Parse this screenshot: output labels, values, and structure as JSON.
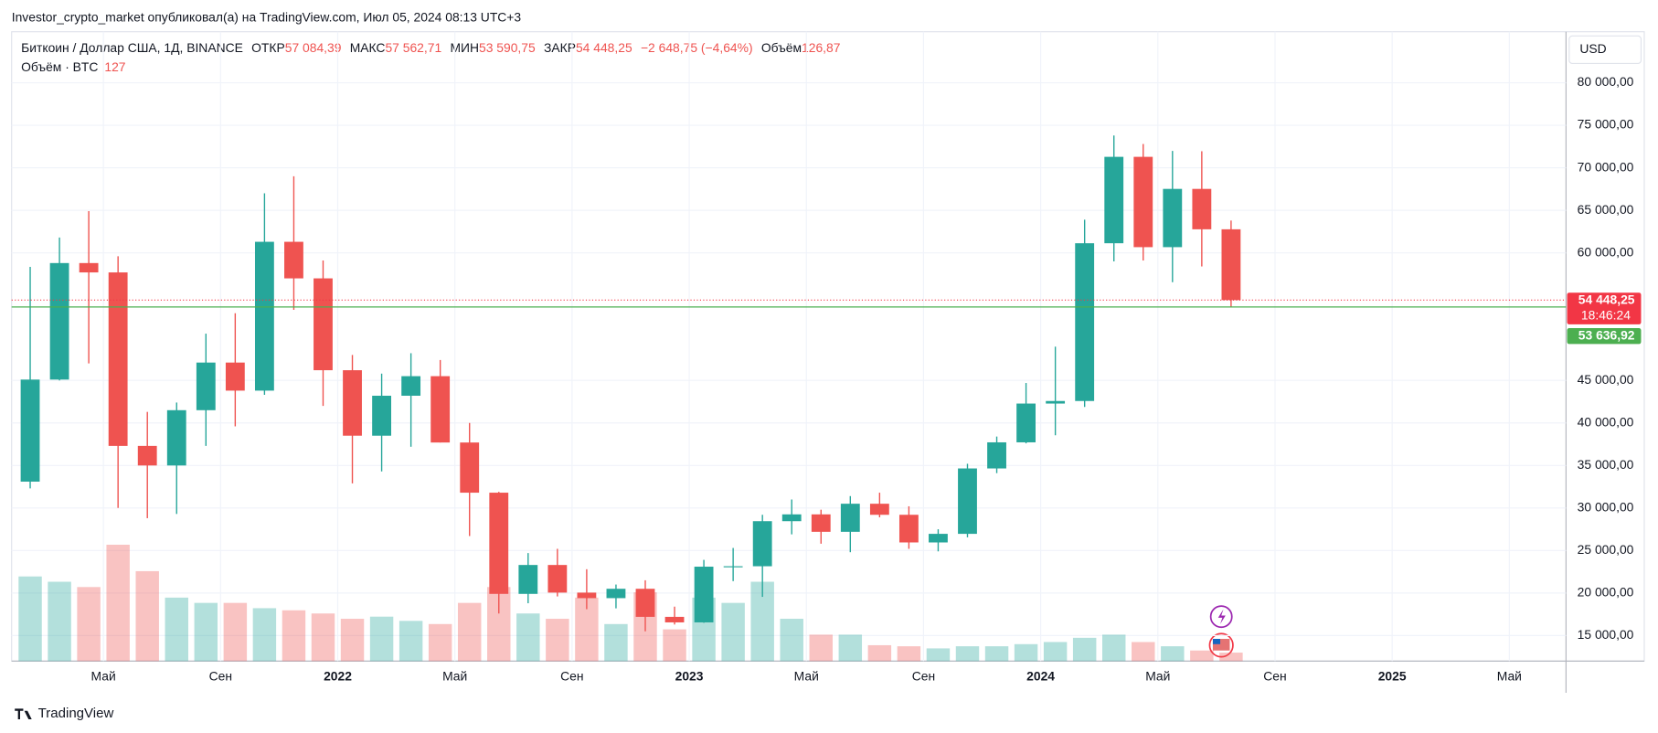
{
  "header": {
    "publisher": "Investor_crypto_market опубликовал(а) на TradingView.com, Июл 05, 2024 08:13 UTC+3",
    "brand": "TradingView"
  },
  "chart_data": {
    "type": "candlestick",
    "title": "Биткоин / Доллар США, 1Д, BINANCE",
    "legend": {
      "open_label": "ОТКР",
      "open": {
        "value": 57084.39,
        "label": "57 084,39"
      },
      "high_label": "МАКС",
      "high": {
        "value": 57562.71,
        "label": "57 562,71"
      },
      "low_label": "МИН",
      "low": {
        "value": 53590.75,
        "label": "53 590,75"
      },
      "close_label": "ЗАКР",
      "close": {
        "value": 54448.25,
        "label": "54 448,25"
      },
      "change": {
        "value": -2648.75,
        "label": "−2 648,75 (−4,64%)"
      },
      "volume_label": "Объём",
      "volume": {
        "value": 126.87,
        "label": "126,87"
      }
    },
    "volume_title": "Объём · BTC",
    "volume_last": 127,
    "currency": "USD",
    "countdown": "18:46:24",
    "up_color": "#26a69a",
    "down_color": "#ef5350",
    "x": [
      "2021-02",
      "2021-03",
      "2021-04",
      "2021-05",
      "2021-06",
      "2021-07",
      "2021-08",
      "2021-09",
      "2021-10",
      "2021-11",
      "2021-12",
      "2022-01",
      "2022-02",
      "2022-03",
      "2022-04",
      "2022-05",
      "2022-06",
      "2022-07",
      "2022-08",
      "2022-09",
      "2022-10",
      "2022-11",
      "2022-12",
      "2023-01",
      "2023-02",
      "2023-03",
      "2023-04",
      "2023-05",
      "2023-06",
      "2023-07",
      "2023-08",
      "2023-09",
      "2023-10",
      "2023-11",
      "2023-12",
      "2024-01",
      "2024-02",
      "2024-03",
      "2024-04",
      "2024-05",
      "2024-06",
      "2024-07"
    ],
    "open": [
      33100,
      45100,
      58800,
      57700,
      37300,
      35000,
      41500,
      47100,
      43800,
      61300,
      57000,
      46200,
      38500,
      43200,
      45500,
      37700,
      31800,
      19900,
      23300,
      20050,
      19400,
      20500,
      17200,
      16550,
      23100,
      23150,
      28450,
      29250,
      27200,
      30500,
      29200,
      25950,
      26960,
      34650,
      37720,
      42280,
      42580,
      61130,
      71290,
      60670,
      67520,
      62770
    ],
    "high": [
      58350,
      61800,
      64900,
      59600,
      41300,
      42400,
      50500,
      52900,
      67000,
      69000,
      59100,
      48000,
      45800,
      48200,
      47400,
      40000,
      31900,
      24700,
      25200,
      22800,
      21000,
      21500,
      18400,
      23900,
      25300,
      29200,
      31000,
      29800,
      31400,
      31800,
      30200,
      27500,
      35200,
      38400,
      44700,
      48970,
      63900,
      73800,
      72800,
      71980,
      71950,
      63800
    ],
    "low": [
      32300,
      45000,
      47000,
      30000,
      28800,
      29300,
      37300,
      39600,
      43300,
      53300,
      42000,
      32900,
      34300,
      37200,
      37700,
      26700,
      17600,
      18800,
      19600,
      18100,
      18200,
      15500,
      16300,
      16500,
      21400,
      19550,
      26900,
      25800,
      24800,
      28900,
      25200,
      24900,
      26550,
      34100,
      37600,
      38550,
      41880,
      59000,
      59100,
      56550,
      58400,
      53590
    ],
    "close": [
      45100,
      58800,
      57700,
      37300,
      35000,
      41500,
      47100,
      43800,
      61300,
      57000,
      46200,
      38500,
      43200,
      45500,
      37700,
      31800,
      19900,
      23300,
      20050,
      19400,
      20500,
      17200,
      16550,
      23100,
      23150,
      28450,
      29250,
      27200,
      30500,
      29200,
      25950,
      26960,
      34650,
      37720,
      42280,
      42580,
      61130,
      71290,
      60670,
      67520,
      62770,
      54448.25
    ],
    "volume": [
      80,
      75,
      70,
      110,
      85,
      60,
      55,
      55,
      50,
      48,
      45,
      40,
      42,
      38,
      35,
      55,
      70,
      45,
      40,
      60,
      35,
      65,
      30,
      60,
      55,
      75,
      40,
      25,
      25,
      15,
      14,
      12,
      14,
      14,
      16,
      18,
      22,
      25,
      18,
      14,
      10,
      8
    ],
    "xticks": [
      {
        "value": "2021-05",
        "label": "Май"
      },
      {
        "value": "2021-09",
        "label": "Сен"
      },
      {
        "value": "2022-01",
        "label": "2022"
      },
      {
        "value": "2022-05",
        "label": "Май"
      },
      {
        "value": "2022-09",
        "label": "Сен"
      },
      {
        "value": "2023-01",
        "label": "2023"
      },
      {
        "value": "2023-05",
        "label": "Май"
      },
      {
        "value": "2023-09",
        "label": "Сен"
      },
      {
        "value": "2024-01",
        "label": "2024"
      },
      {
        "value": "2024-05",
        "label": "Май"
      },
      {
        "value": "2024-09",
        "label": "Сен"
      },
      {
        "value": "2025-01",
        "label": "2025"
      },
      {
        "value": "2025-05",
        "label": "Май"
      }
    ],
    "ylim": [
      12000,
      86000
    ],
    "yticks": [
      {
        "value": 15000,
        "label": "15 000,00"
      },
      {
        "value": 20000,
        "label": "20 000,00"
      },
      {
        "value": 25000,
        "label": "25 000,00"
      },
      {
        "value": 30000,
        "label": "30 000,00"
      },
      {
        "value": 35000,
        "label": "35 000,00"
      },
      {
        "value": 40000,
        "label": "40 000,00"
      },
      {
        "value": 45000,
        "label": "45 000,00"
      },
      {
        "value": 60000,
        "label": "60 000,00"
      },
      {
        "value": 65000,
        "label": "65 000,00"
      },
      {
        "value": 70000,
        "label": "70 000,00"
      },
      {
        "value": 75000,
        "label": "75 000,00"
      },
      {
        "value": 80000,
        "label": "80 000,00"
      }
    ],
    "price_lines": [
      {
        "value": 54448.25,
        "label": "54 448,25",
        "color": "#f23645",
        "style": "dotted"
      },
      {
        "value": 53636.92,
        "label": "53 636,92",
        "color": "#4caf50",
        "style": "solid"
      }
    ],
    "grid": true
  }
}
